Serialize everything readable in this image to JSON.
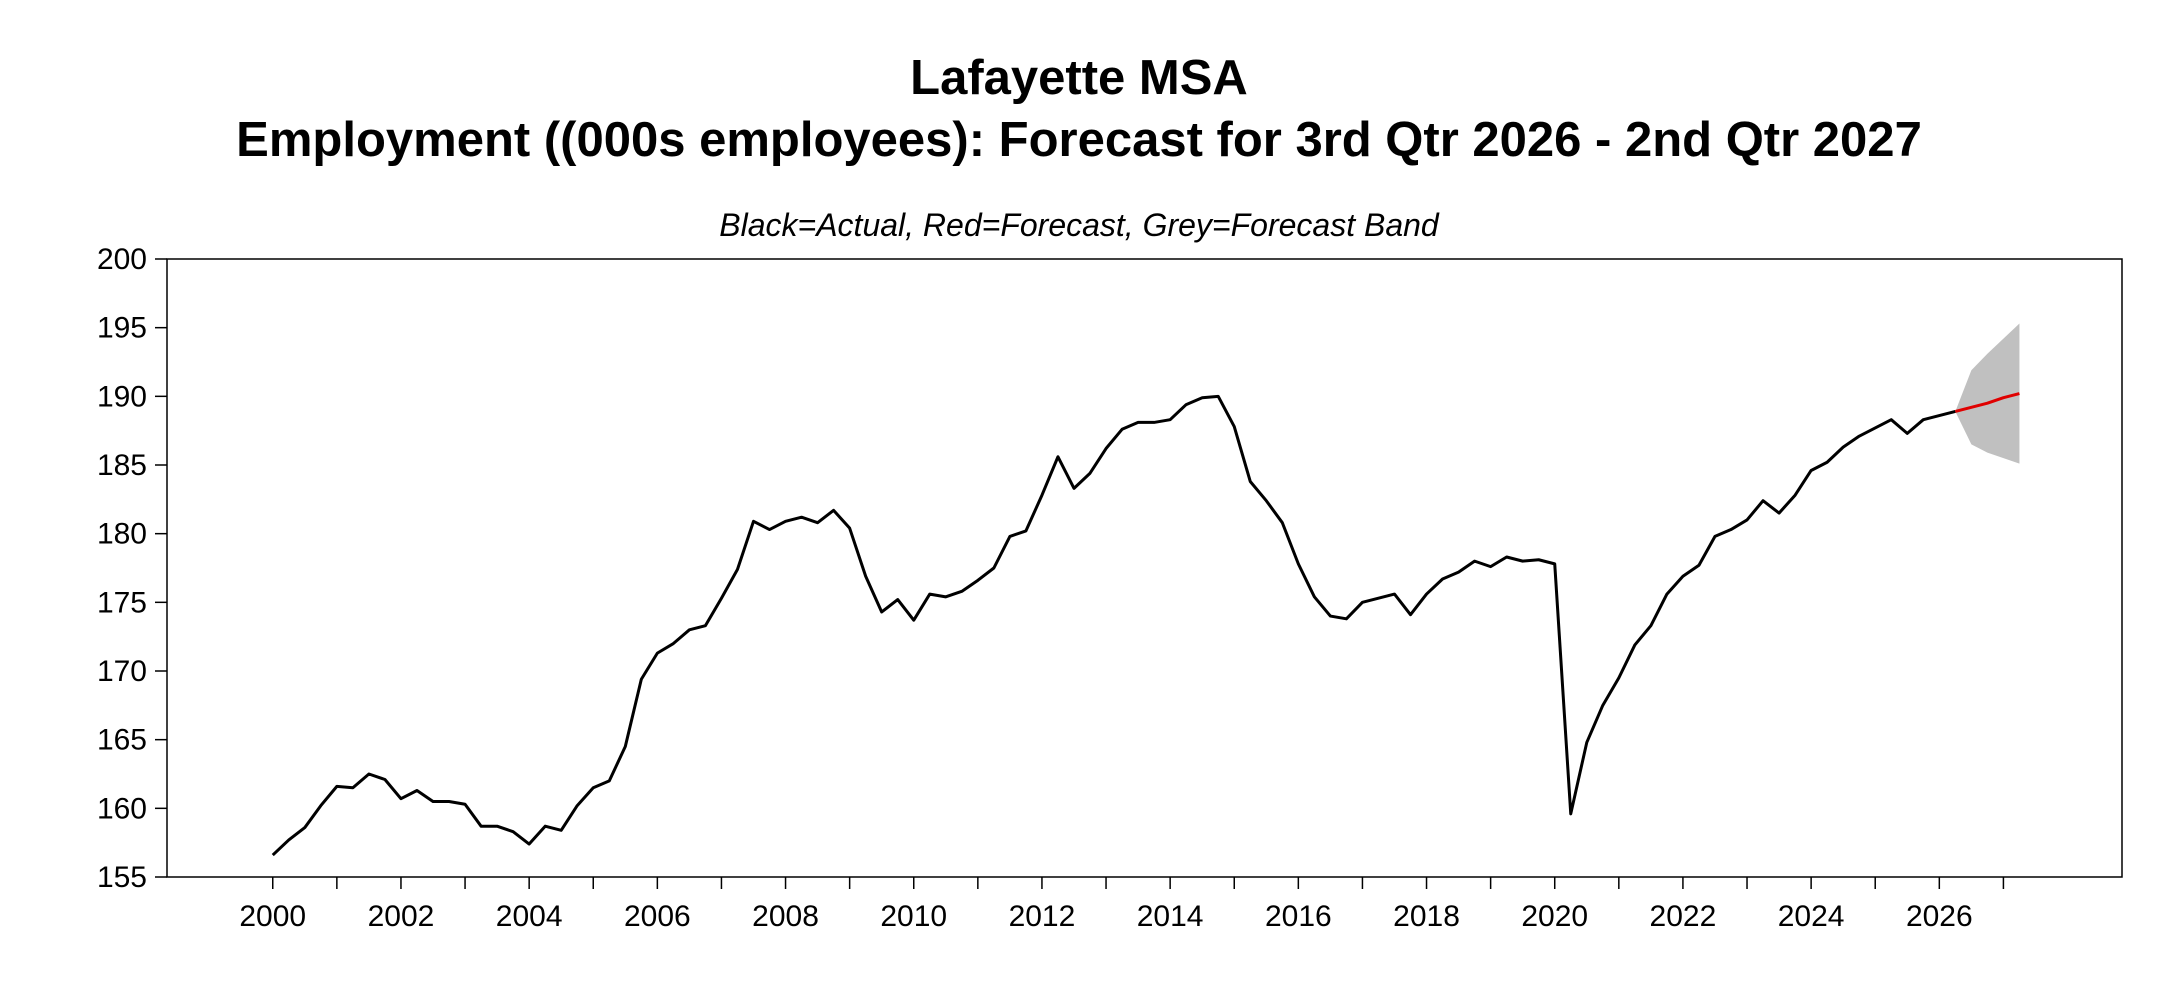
{
  "chart_data": {
    "type": "line",
    "title": "Lafayette MSA",
    "subtitle": "Employment ((000s employees): Forecast for 3rd Qtr 2026 - 2nd Qtr 2027",
    "note": "Black=Actual, Red=Forecast, Grey=Forecast Band",
    "xlabel": "",
    "ylabel": "",
    "xlim": [
      1998.35,
      2028.85
    ],
    "ylim": [
      155,
      200
    ],
    "yticks": [
      155,
      160,
      165,
      170,
      175,
      180,
      185,
      190,
      195,
      200
    ],
    "xticks": [
      2000,
      2002,
      2004,
      2006,
      2008,
      2010,
      2012,
      2014,
      2016,
      2018,
      2020,
      2022,
      2024,
      2026
    ],
    "grid": false,
    "colors": {
      "actual": "#000000",
      "forecast": "#e00000",
      "band": "#c0c0c0"
    },
    "series": [
      {
        "role": "actual",
        "x": [
          2000.0,
          2000.25,
          2000.5,
          2000.75,
          2001.0,
          2001.25,
          2001.5,
          2001.75,
          2002.0,
          2002.25,
          2002.5,
          2002.75,
          2003.0,
          2003.25,
          2003.5,
          2003.75,
          2004.0,
          2004.25,
          2004.5,
          2004.75,
          2005.0,
          2005.25,
          2005.5,
          2005.75,
          2006.0,
          2006.25,
          2006.5,
          2006.75,
          2007.0,
          2007.25,
          2007.5,
          2007.75,
          2008.0,
          2008.25,
          2008.5,
          2008.75,
          2009.0,
          2009.25,
          2009.5,
          2009.75,
          2010.0,
          2010.25,
          2010.5,
          2010.75,
          2011.0,
          2011.25,
          2011.5,
          2011.75,
          2012.0,
          2012.25,
          2012.5,
          2012.75,
          2013.0,
          2013.25,
          2013.5,
          2013.75,
          2014.0,
          2014.25,
          2014.5,
          2014.75,
          2015.0,
          2015.25,
          2015.5,
          2015.75,
          2016.0,
          2016.25,
          2016.5,
          2016.75,
          2017.0,
          2017.25,
          2017.5,
          2017.75,
          2018.0,
          2018.25,
          2018.5,
          2018.75,
          2019.0,
          2019.25,
          2019.5,
          2019.75,
          2020.0,
          2020.25,
          2020.5,
          2020.75,
          2021.0,
          2021.25,
          2021.5,
          2021.75,
          2022.0,
          2022.25,
          2022.5,
          2022.75,
          2023.0,
          2023.25,
          2023.5,
          2023.75,
          2024.0,
          2024.25,
          2024.5,
          2024.75,
          2025.0,
          2025.25,
          2025.5,
          2025.75,
          2026.0,
          2026.25
        ],
        "values": [
          156.6,
          157.7,
          158.6,
          160.2,
          161.6,
          161.5,
          162.5,
          162.1,
          160.7,
          161.3,
          160.5,
          160.5,
          160.3,
          158.7,
          158.7,
          158.3,
          157.4,
          158.7,
          158.4,
          160.2,
          161.5,
          162.0,
          164.5,
          169.4,
          171.3,
          172.0,
          173.0,
          173.3,
          175.3,
          177.4,
          180.9,
          180.3,
          180.9,
          181.2,
          180.8,
          181.7,
          180.4,
          176.9,
          174.3,
          175.2,
          173.7,
          175.6,
          175.4,
          175.8,
          176.6,
          177.5,
          179.8,
          180.2,
          182.8,
          185.6,
          183.3,
          184.4,
          186.2,
          187.6,
          188.1,
          188.1,
          188.3,
          189.4,
          189.9,
          190.0,
          187.8,
          183.8,
          182.4,
          180.8,
          177.8,
          175.4,
          174.0,
          173.8,
          175.0,
          175.3,
          175.6,
          174.1,
          175.6,
          176.7,
          177.2,
          178.0,
          177.6,
          178.3,
          178.0,
          178.1,
          177.8,
          159.6,
          164.8,
          167.5,
          169.5,
          171.9,
          173.3,
          175.6,
          176.9,
          177.7,
          179.8,
          180.3,
          181.0,
          182.4,
          181.5,
          182.8,
          184.6,
          185.2,
          186.3,
          187.1,
          187.7,
          188.3,
          187.3,
          188.3,
          188.6,
          188.9
        ]
      },
      {
        "role": "forecast",
        "x": [
          2026.25,
          2026.5,
          2026.75,
          2027.0,
          2027.25
        ],
        "values": [
          188.9,
          189.2,
          189.5,
          189.9,
          190.2
        ]
      },
      {
        "role": "band-upper",
        "x": [
          2026.25,
          2026.5,
          2026.75,
          2027.0,
          2027.25
        ],
        "values": [
          188.9,
          191.9,
          193.1,
          194.2,
          195.3
        ]
      },
      {
        "role": "band-lower",
        "x": [
          2026.25,
          2026.5,
          2026.75,
          2027.0,
          2027.25
        ],
        "values": [
          188.9,
          186.5,
          185.9,
          185.5,
          185.1
        ]
      }
    ]
  }
}
